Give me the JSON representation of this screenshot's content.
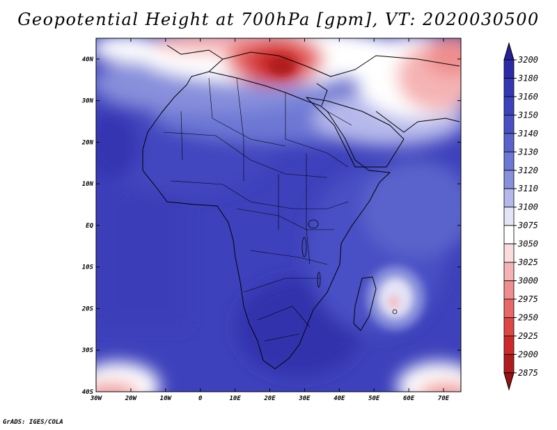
{
  "title": "Geopotential Height at 700hPa [gpm], VT: 2020030500",
  "credit": "GrADS: IGES/COLA",
  "map": {
    "lon_range": [
      -30,
      75
    ],
    "lat_range": [
      -40,
      45
    ],
    "lon_ticks": [
      {
        "v": -30,
        "label": "30W"
      },
      {
        "v": -20,
        "label": "20W"
      },
      {
        "v": -10,
        "label": "10W"
      },
      {
        "v": 0,
        "label": "0"
      },
      {
        "v": 10,
        "label": "10E"
      },
      {
        "v": 20,
        "label": "20E"
      },
      {
        "v": 30,
        "label": "30E"
      },
      {
        "v": 40,
        "label": "40E"
      },
      {
        "v": 50,
        "label": "50E"
      },
      {
        "v": 60,
        "label": "60E"
      },
      {
        "v": 70,
        "label": "70E"
      }
    ],
    "lat_ticks": [
      {
        "v": 40,
        "label": "40N"
      },
      {
        "v": 30,
        "label": "30N"
      },
      {
        "v": 20,
        "label": "20N"
      },
      {
        "v": 10,
        "label": "10N"
      },
      {
        "v": 0,
        "label": "EQ"
      },
      {
        "v": -10,
        "label": "10S"
      },
      {
        "v": -20,
        "label": "20S"
      },
      {
        "v": -30,
        "label": "30S"
      },
      {
        "v": -40,
        "label": "40S"
      }
    ]
  },
  "colorbar": {
    "labels": [
      "3200",
      "3180",
      "3160",
      "3150",
      "3140",
      "3130",
      "3120",
      "3110",
      "3100",
      "3075",
      "3050",
      "3025",
      "3000",
      "2975",
      "2950",
      "2925",
      "2900",
      "2875"
    ],
    "colors": [
      "#261f96",
      "#2d2aa6",
      "#3536b2",
      "#3d41bb",
      "#4a50c4",
      "#5a63cb",
      "#6d78d4",
      "#8890dc",
      "#b5b8ea",
      "#e4e4f7",
      "#ffffff",
      "#fbdcdc",
      "#f5b4b4",
      "#ef8e8e",
      "#e86868",
      "#de4545",
      "#cc2a2a",
      "#b01c1c",
      "#981212"
    ]
  }
}
